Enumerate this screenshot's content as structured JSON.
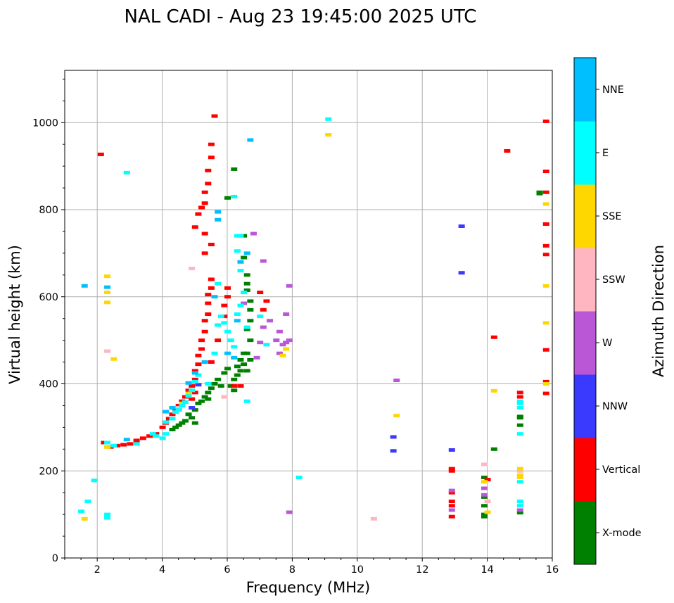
{
  "chart_data": {
    "type": "scatter",
    "title": "NAL CADI - Aug 23 19:45:00 2025 UTC",
    "xlabel": "Frequency (MHz)",
    "ylabel": "Virtual height (km)",
    "xlim": [
      1,
      16
    ],
    "ylim": [
      0,
      1120
    ],
    "x_ticks": [
      2,
      4,
      6,
      8,
      10,
      12,
      14,
      16
    ],
    "y_ticks": [
      0,
      200,
      400,
      600,
      800,
      1000
    ],
    "grid": true,
    "colorbar": {
      "title": "Azimuth Direction",
      "categories": [
        "X-mode",
        "Vertical",
        "NNW",
        "W",
        "SSW",
        "SSE",
        "E",
        "NNE"
      ],
      "colors": [
        "#008000",
        "#ff0000",
        "#3a3aff",
        "#b957d6",
        "#ffb6c1",
        "#ffd700",
        "#00ffff",
        "#00bfff"
      ]
    },
    "series": [
      {
        "name": "X-mode",
        "color": "#008000",
        "points": [
          [
            4.4,
            300
          ],
          [
            4.5,
            305
          ],
          [
            4.6,
            310
          ],
          [
            4.7,
            315
          ],
          [
            4.8,
            330
          ],
          [
            4.9,
            322
          ],
          [
            5.0,
            340
          ],
          [
            5.1,
            355
          ],
          [
            5.2,
            360
          ],
          [
            5.3,
            370
          ],
          [
            5.4,
            380
          ],
          [
            5.5,
            390
          ],
          [
            5.6,
            400
          ],
          [
            5.7,
            410
          ],
          [
            5.8,
            395
          ],
          [
            5.9,
            425
          ],
          [
            6.0,
            435
          ],
          [
            6.1,
            395
          ],
          [
            6.2,
            385
          ],
          [
            6.2,
            410
          ],
          [
            6.3,
            420
          ],
          [
            6.3,
            440
          ],
          [
            6.4,
            430
          ],
          [
            6.4,
            455
          ],
          [
            6.5,
            470
          ],
          [
            6.5,
            445
          ],
          [
            6.6,
            430
          ],
          [
            6.6,
            470
          ],
          [
            6.7,
            455
          ],
          [
            6.7,
            500
          ],
          [
            6.6,
            525
          ],
          [
            6.7,
            545
          ],
          [
            6.7,
            570
          ],
          [
            6.7,
            590
          ],
          [
            6.6,
            615
          ],
          [
            6.6,
            630
          ],
          [
            6.6,
            650
          ],
          [
            6.5,
            690
          ],
          [
            6.5,
            740
          ],
          [
            6.2,
            893
          ],
          [
            6.0,
            827
          ],
          [
            5.4,
            365
          ],
          [
            5.0,
            310
          ],
          [
            4.3,
            295
          ],
          [
            13.9,
            95
          ],
          [
            13.9,
            100
          ],
          [
            13.9,
            120
          ],
          [
            13.9,
            140
          ],
          [
            13.9,
            160
          ],
          [
            13.9,
            185
          ],
          [
            14.2,
            250
          ],
          [
            15.0,
            104
          ],
          [
            15.0,
            305
          ],
          [
            15.0,
            325
          ],
          [
            15.0,
            322
          ],
          [
            15.6,
            837
          ],
          [
            15.6,
            840
          ]
        ]
      },
      {
        "name": "Vertical",
        "color": "#ff0000",
        "points": [
          [
            2.2,
            265
          ],
          [
            2.4,
            255
          ],
          [
            2.6,
            258
          ],
          [
            2.8,
            260
          ],
          [
            3.0,
            262
          ],
          [
            3.2,
            270
          ],
          [
            3.4,
            275
          ],
          [
            3.6,
            280
          ],
          [
            3.8,
            285
          ],
          [
            4.0,
            300
          ],
          [
            4.1,
            310
          ],
          [
            4.2,
            320
          ],
          [
            4.3,
            330
          ],
          [
            4.4,
            340
          ],
          [
            4.5,
            350
          ],
          [
            4.6,
            360
          ],
          [
            4.7,
            370
          ],
          [
            4.8,
            385
          ],
          [
            4.9,
            395
          ],
          [
            5.0,
            410
          ],
          [
            5.0,
            430
          ],
          [
            5.1,
            445
          ],
          [
            5.1,
            465
          ],
          [
            5.2,
            480
          ],
          [
            5.2,
            500
          ],
          [
            5.3,
            520
          ],
          [
            5.3,
            545
          ],
          [
            5.4,
            560
          ],
          [
            5.4,
            585
          ],
          [
            5.4,
            605
          ],
          [
            5.5,
            620
          ],
          [
            5.5,
            640
          ],
          [
            5.3,
            700
          ],
          [
            5.5,
            720
          ],
          [
            5.3,
            745
          ],
          [
            5.0,
            760
          ],
          [
            5.1,
            790
          ],
          [
            5.2,
            805
          ],
          [
            5.3,
            815
          ],
          [
            5.3,
            840
          ],
          [
            5.4,
            860
          ],
          [
            5.4,
            890
          ],
          [
            5.5,
            920
          ],
          [
            5.5,
            950
          ],
          [
            5.6,
            1015
          ],
          [
            5.9,
            555
          ],
          [
            5.9,
            580
          ],
          [
            6.0,
            600
          ],
          [
            6.0,
            620
          ],
          [
            5.5,
            450
          ],
          [
            5.7,
            500
          ],
          [
            6.2,
            395
          ],
          [
            6.4,
            395
          ],
          [
            7.0,
            610
          ],
          [
            7.2,
            590
          ],
          [
            7.1,
            570
          ],
          [
            2.1,
            927
          ],
          [
            5.0,
            380
          ],
          [
            4.9,
            365
          ],
          [
            12.9,
            95
          ],
          [
            12.9,
            120
          ],
          [
            12.9,
            130
          ],
          [
            12.9,
            150
          ],
          [
            12.9,
            200
          ],
          [
            12.9,
            205
          ],
          [
            14.0,
            180
          ],
          [
            14.2,
            507
          ],
          [
            14.6,
            935
          ],
          [
            15.0,
            380
          ],
          [
            15.0,
            370
          ],
          [
            15.8,
            1003
          ],
          [
            15.8,
            888
          ],
          [
            15.8,
            840
          ],
          [
            15.8,
            767
          ],
          [
            15.8,
            717
          ],
          [
            15.8,
            697
          ],
          [
            15.8,
            478
          ],
          [
            15.8,
            405
          ],
          [
            15.8,
            378
          ]
        ]
      },
      {
        "name": "NNW",
        "color": "#3a3aff",
        "points": [
          [
            12.9,
            248
          ],
          [
            13.2,
            762
          ],
          [
            11.1,
            278
          ],
          [
            11.1,
            246
          ],
          [
            13.2,
            655
          ],
          [
            4.9,
            345
          ],
          [
            5.1,
            398
          ]
        ]
      },
      {
        "name": "W",
        "color": "#b957d6",
        "points": [
          [
            6.9,
            460
          ],
          [
            7.0,
            495
          ],
          [
            7.1,
            530
          ],
          [
            7.3,
            545
          ],
          [
            7.5,
            500
          ],
          [
            7.6,
            520
          ],
          [
            7.7,
            490
          ],
          [
            7.8,
            495
          ],
          [
            7.8,
            560
          ],
          [
            7.9,
            500
          ],
          [
            7.9,
            625
          ],
          [
            6.8,
            745
          ],
          [
            7.1,
            682
          ],
          [
            7.6,
            470
          ],
          [
            11.2,
            408
          ],
          [
            7.9,
            105
          ],
          [
            12.9,
            155
          ],
          [
            12.9,
            110
          ],
          [
            13.9,
            160
          ],
          [
            13.9,
            145
          ],
          [
            15.0,
            110
          ],
          [
            6.5,
            585
          ]
        ]
      },
      {
        "name": "SSW",
        "color": "#ffb6c1",
        "points": [
          [
            2.3,
            475
          ],
          [
            4.9,
            665
          ],
          [
            10.5,
            90
          ],
          [
            13.9,
            215
          ],
          [
            14.0,
            130
          ],
          [
            15.0,
            200
          ],
          [
            2.3,
            255
          ],
          [
            4.5,
            345
          ],
          [
            5.9,
            370
          ]
        ]
      },
      {
        "name": "SSE",
        "color": "#ffd700",
        "points": [
          [
            1.6,
            90
          ],
          [
            2.3,
            647
          ],
          [
            2.3,
            610
          ],
          [
            2.3,
            587
          ],
          [
            2.3,
            255
          ],
          [
            2.5,
            457
          ],
          [
            9.1,
            972
          ],
          [
            11.2,
            327
          ],
          [
            13.9,
            175
          ],
          [
            14.0,
            105
          ],
          [
            14.2,
            384
          ],
          [
            15.0,
            185
          ],
          [
            15.0,
            190
          ],
          [
            15.0,
            205
          ],
          [
            15.8,
            813
          ],
          [
            15.8,
            625
          ],
          [
            15.8,
            540
          ],
          [
            15.8,
            400
          ],
          [
            7.8,
            480
          ],
          [
            7.7,
            465
          ],
          [
            4.6,
            355
          ],
          [
            4.8,
            378
          ]
        ]
      },
      {
        "name": "E",
        "color": "#00ffff",
        "points": [
          [
            1.5,
            107
          ],
          [
            1.7,
            130
          ],
          [
            1.9,
            178
          ],
          [
            2.3,
            92
          ],
          [
            2.3,
            100
          ],
          [
            2.3,
            265
          ],
          [
            2.5,
            258
          ],
          [
            2.9,
            885
          ],
          [
            3.2,
            262
          ],
          [
            3.7,
            285
          ],
          [
            3.8,
            280
          ],
          [
            4.0,
            275
          ],
          [
            4.1,
            312
          ],
          [
            4.3,
            320
          ],
          [
            4.4,
            335
          ],
          [
            4.5,
            340
          ],
          [
            4.6,
            350
          ],
          [
            4.7,
            358
          ],
          [
            4.8,
            372
          ],
          [
            4.9,
            385
          ],
          [
            5.0,
            405
          ],
          [
            5.1,
            420
          ],
          [
            5.4,
            400
          ],
          [
            5.6,
            470
          ],
          [
            5.7,
            535
          ],
          [
            5.8,
            555
          ],
          [
            5.9,
            540
          ],
          [
            6.0,
            520
          ],
          [
            6.1,
            500
          ],
          [
            6.2,
            485
          ],
          [
            6.3,
            560
          ],
          [
            6.4,
            580
          ],
          [
            6.5,
            610
          ],
          [
            6.4,
            660
          ],
          [
            6.3,
            705
          ],
          [
            6.3,
            740
          ],
          [
            6.6,
            530
          ],
          [
            6.2,
            830
          ],
          [
            6.6,
            360
          ],
          [
            7.0,
            555
          ],
          [
            7.2,
            490
          ],
          [
            8.2,
            185
          ],
          [
            9.1,
            1008
          ],
          [
            6.4,
            740
          ],
          [
            5.7,
            630
          ],
          [
            15.0,
            355
          ],
          [
            15.0,
            345
          ],
          [
            15.0,
            360
          ],
          [
            15.0,
            285
          ],
          [
            15.0,
            175
          ],
          [
            15.0,
            120
          ],
          [
            15.0,
            130
          ],
          [
            4.1,
            285
          ]
        ]
      },
      {
        "name": "NNE",
        "color": "#00bfff",
        "points": [
          [
            1.6,
            625
          ],
          [
            2.3,
            622
          ],
          [
            2.9,
            272
          ],
          [
            4.1,
            336
          ],
          [
            4.3,
            345
          ],
          [
            4.8,
            402
          ],
          [
            5.0,
            425
          ],
          [
            5.3,
            450
          ],
          [
            5.6,
            600
          ],
          [
            5.7,
            795
          ],
          [
            5.7,
            777
          ],
          [
            6.4,
            680
          ],
          [
            6.6,
            700
          ],
          [
            6.7,
            960
          ],
          [
            6.2,
            460
          ],
          [
            6.3,
            545
          ],
          [
            6.0,
            470
          ]
        ]
      }
    ]
  }
}
